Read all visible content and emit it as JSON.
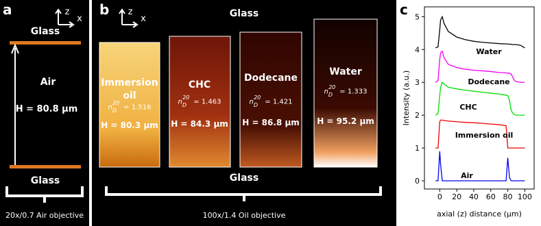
{
  "panel_a": {
    "label": "a",
    "axis_z": "z",
    "axis_x": "x",
    "top": "Glass",
    "medium": "Air",
    "height": "H = 80.8 µm",
    "bottom": "Glass",
    "objective": "20x/0.7 Air objective"
  },
  "panel_b": {
    "label": "b",
    "axis_z": "z",
    "axis_x": "x",
    "top": "Glass",
    "bottom": "Glass",
    "objective": "100x/1.4 Oil objective",
    "samples": [
      {
        "name": "Immersion oil",
        "n": "n",
        "sub": "D",
        "sup": "20",
        "index": "= 1.516",
        "height": "H = 80.3 µm"
      },
      {
        "name": "CHC",
        "n": "n",
        "sub": "D",
        "sup": "20",
        "index": "= 1.463",
        "height": "H = 84.3 µm"
      },
      {
        "name": "Dodecane",
        "n": "n",
        "sub": "D",
        "sup": "20",
        "index": "= 1.421",
        "height": "H = 86.8 µm"
      },
      {
        "name": "Water",
        "n": "n",
        "sub": "D",
        "sup": "20",
        "index": "= 1.333",
        "height": "H = 95.2 µm"
      }
    ]
  },
  "chart_data": {
    "type": "line",
    "panel_label": "c",
    "x_label": "axial (z) distance (µm)",
    "y_label": "Intensity (a.u.)",
    "x": [
      -5,
      -2,
      0,
      1,
      3,
      5,
      10,
      20,
      30,
      40,
      50,
      60,
      70,
      78,
      80,
      82,
      84,
      86,
      88,
      90,
      95,
      100
    ],
    "xlim": [
      -18,
      111
    ],
    "xticks": [
      0,
      20,
      40,
      60,
      80,
      100
    ],
    "ylim": [
      -0.25,
      5.3
    ],
    "yticks": [
      0,
      1,
      2,
      3,
      4,
      5
    ],
    "series": [
      {
        "name": "Air",
        "color": "#0000ee",
        "values": [
          0,
          0,
          0.9,
          0.5,
          0,
          0,
          0,
          0,
          0,
          0,
          0,
          0,
          0,
          0,
          0.7,
          0.1,
          0,
          0,
          0,
          0,
          0,
          0
        ]
      },
      {
        "name": "Immersion oil",
        "color": "#ee0000",
        "values": [
          1,
          1,
          1.8,
          1.85,
          1.85,
          1.84,
          1.82,
          1.8,
          1.78,
          1.77,
          1.75,
          1.73,
          1.71,
          1.68,
          1.0,
          1,
          1,
          1,
          1,
          1,
          1,
          1
        ]
      },
      {
        "name": "CHC",
        "color": "#00dd00",
        "values": [
          2,
          2.05,
          2.6,
          2.85,
          3.0,
          2.95,
          2.85,
          2.8,
          2.76,
          2.73,
          2.7,
          2.67,
          2.64,
          2.61,
          2.6,
          2.45,
          2.15,
          2.05,
          2.02,
          2,
          2,
          2
        ]
      },
      {
        "name": "Dodecane",
        "color": "#ee00ee",
        "values": [
          3.0,
          3.05,
          3.7,
          3.9,
          3.95,
          3.75,
          3.55,
          3.45,
          3.4,
          3.37,
          3.35,
          3.33,
          3.3,
          3.29,
          3.28,
          3.28,
          3.25,
          3.15,
          3.05,
          3.02,
          3.0,
          3.0
        ]
      },
      {
        "name": "Water",
        "color": "#000000",
        "values": [
          4.05,
          4.08,
          4.6,
          4.9,
          5.0,
          4.8,
          4.55,
          4.38,
          4.3,
          4.25,
          4.22,
          4.2,
          4.18,
          4.17,
          4.17,
          4.16,
          4.16,
          4.15,
          4.15,
          4.15,
          4.13,
          4.05
        ]
      }
    ]
  }
}
